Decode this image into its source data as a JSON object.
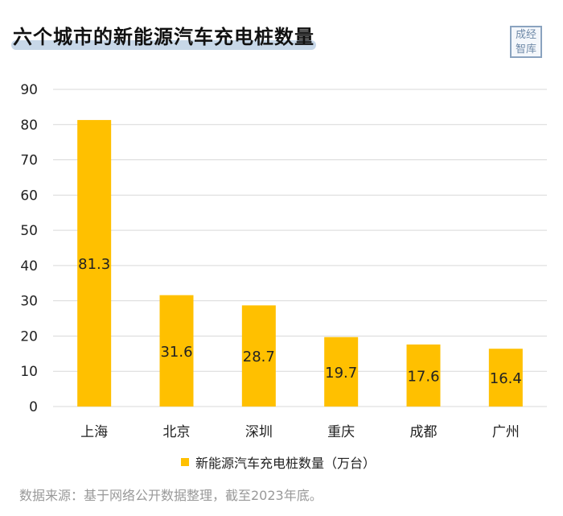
{
  "title": "六个城市的新能源汽车充电桩数量",
  "logo_text": [
    "成经",
    "智库"
  ],
  "source": "数据来源：基于网络公开数据整理，截至2023年底。",
  "colors": {
    "bar": "#FFC000",
    "grid": "#d9d9d9",
    "title_highlight": "#c7d7e8"
  },
  "chart_data": {
    "type": "bar",
    "categories": [
      "上海",
      "北京",
      "深圳",
      "重庆",
      "成都",
      "广州"
    ],
    "series": [
      {
        "name": "新能源汽车充电桩数量（万台）",
        "values": [
          81.3,
          31.6,
          28.7,
          19.7,
          17.6,
          16.4
        ]
      }
    ],
    "data_labels": [
      "81.3",
      "31.6",
      "28.7",
      "19.7",
      "17.6",
      "16.4"
    ],
    "ylim": [
      0,
      90
    ],
    "yticks": [
      0,
      10,
      20,
      30,
      40,
      50,
      60,
      70,
      80,
      90
    ],
    "grid": true,
    "legend_position": "bottom"
  }
}
